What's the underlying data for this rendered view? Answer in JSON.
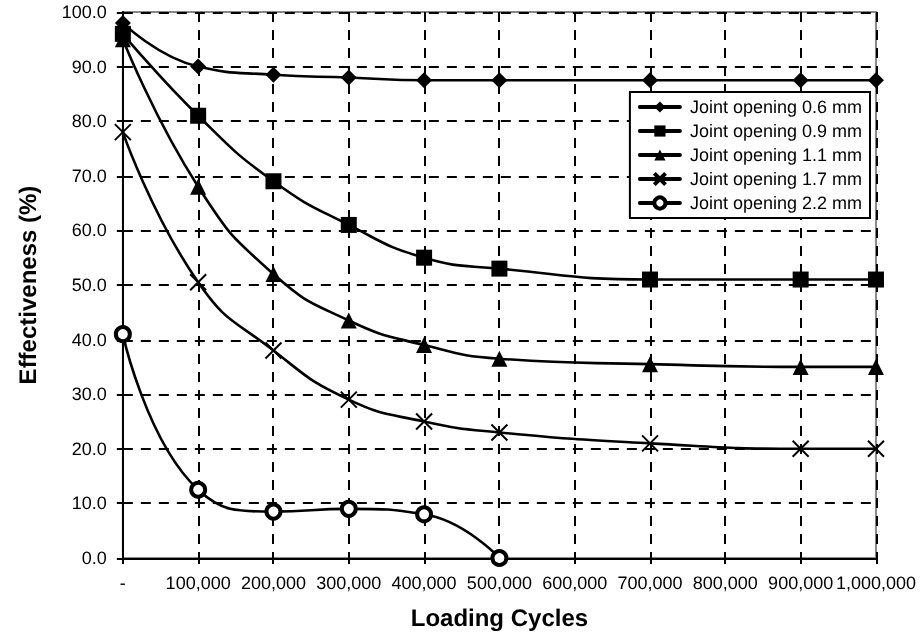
{
  "chart_data": {
    "type": "line",
    "xlabel": "Loading Cycles",
    "ylabel": "Effectiveness (%)",
    "x": [
      0,
      100000,
      200000,
      300000,
      400000,
      500000,
      700000,
      900000,
      1000000
    ],
    "series": [
      {
        "name": "Joint opening 0.6 mm",
        "color": "#000000",
        "marker": "diamond",
        "values": [
          98,
          90,
          88.5,
          88,
          87.5,
          87.5,
          87.5,
          87.5,
          87.5
        ]
      },
      {
        "name": "Joint opening 0.9 mm",
        "color": "#000000",
        "marker": "square",
        "values": [
          96,
          81,
          69,
          61,
          55,
          53,
          51,
          51,
          51
        ]
      },
      {
        "name": "Joint opening 1.1 mm",
        "color": "#000000",
        "marker": "triangle",
        "values": [
          95,
          68,
          52,
          43.5,
          39,
          36.5,
          35.5,
          35,
          35
        ]
      },
      {
        "name": "Joint opening 1.7 mm",
        "color": "#000000",
        "marker": "cross",
        "values": [
          78,
          50.5,
          38,
          29,
          25,
          23,
          21,
          20,
          20
        ]
      },
      {
        "name": "Joint opening 2.2 mm",
        "color": "#000000",
        "marker": "circle",
        "x": [
          0,
          100000,
          200000,
          300000,
          400000,
          500000
        ],
        "values": [
          41,
          12.5,
          8.5,
          9,
          8,
          0
        ]
      }
    ],
    "xlim": [
      0,
      1000000
    ],
    "xticks": [
      {
        "value": 0,
        "label": "-"
      },
      {
        "value": 100000,
        "label": "100,000"
      },
      {
        "value": 200000,
        "label": "200,000"
      },
      {
        "value": 300000,
        "label": "300,000"
      },
      {
        "value": 400000,
        "label": "400,000"
      },
      {
        "value": 500000,
        "label": "500,000"
      },
      {
        "value": 600000,
        "label": "600,000"
      },
      {
        "value": 700000,
        "label": "700,000"
      },
      {
        "value": 800000,
        "label": "800,000"
      },
      {
        "value": 900000,
        "label": "900,000"
      },
      {
        "value": 1000000,
        "label": "1,000,000"
      }
    ],
    "ylim": [
      0,
      100
    ],
    "yticks": [
      {
        "value": 0,
        "label": "0.0"
      },
      {
        "value": 10,
        "label": "10.0"
      },
      {
        "value": 20,
        "label": "20.0"
      },
      {
        "value": 30,
        "label": "30.0"
      },
      {
        "value": 40,
        "label": "40.0"
      },
      {
        "value": 50,
        "label": "50.0"
      },
      {
        "value": 60,
        "label": "60.0"
      },
      {
        "value": 70,
        "label": "70.0"
      },
      {
        "value": 80,
        "label": "80.0"
      },
      {
        "value": 90,
        "label": "90.0"
      },
      {
        "value": 100,
        "label": "100.0"
      }
    ],
    "grid": true,
    "legend": "top right",
    "line_style": "solid"
  }
}
